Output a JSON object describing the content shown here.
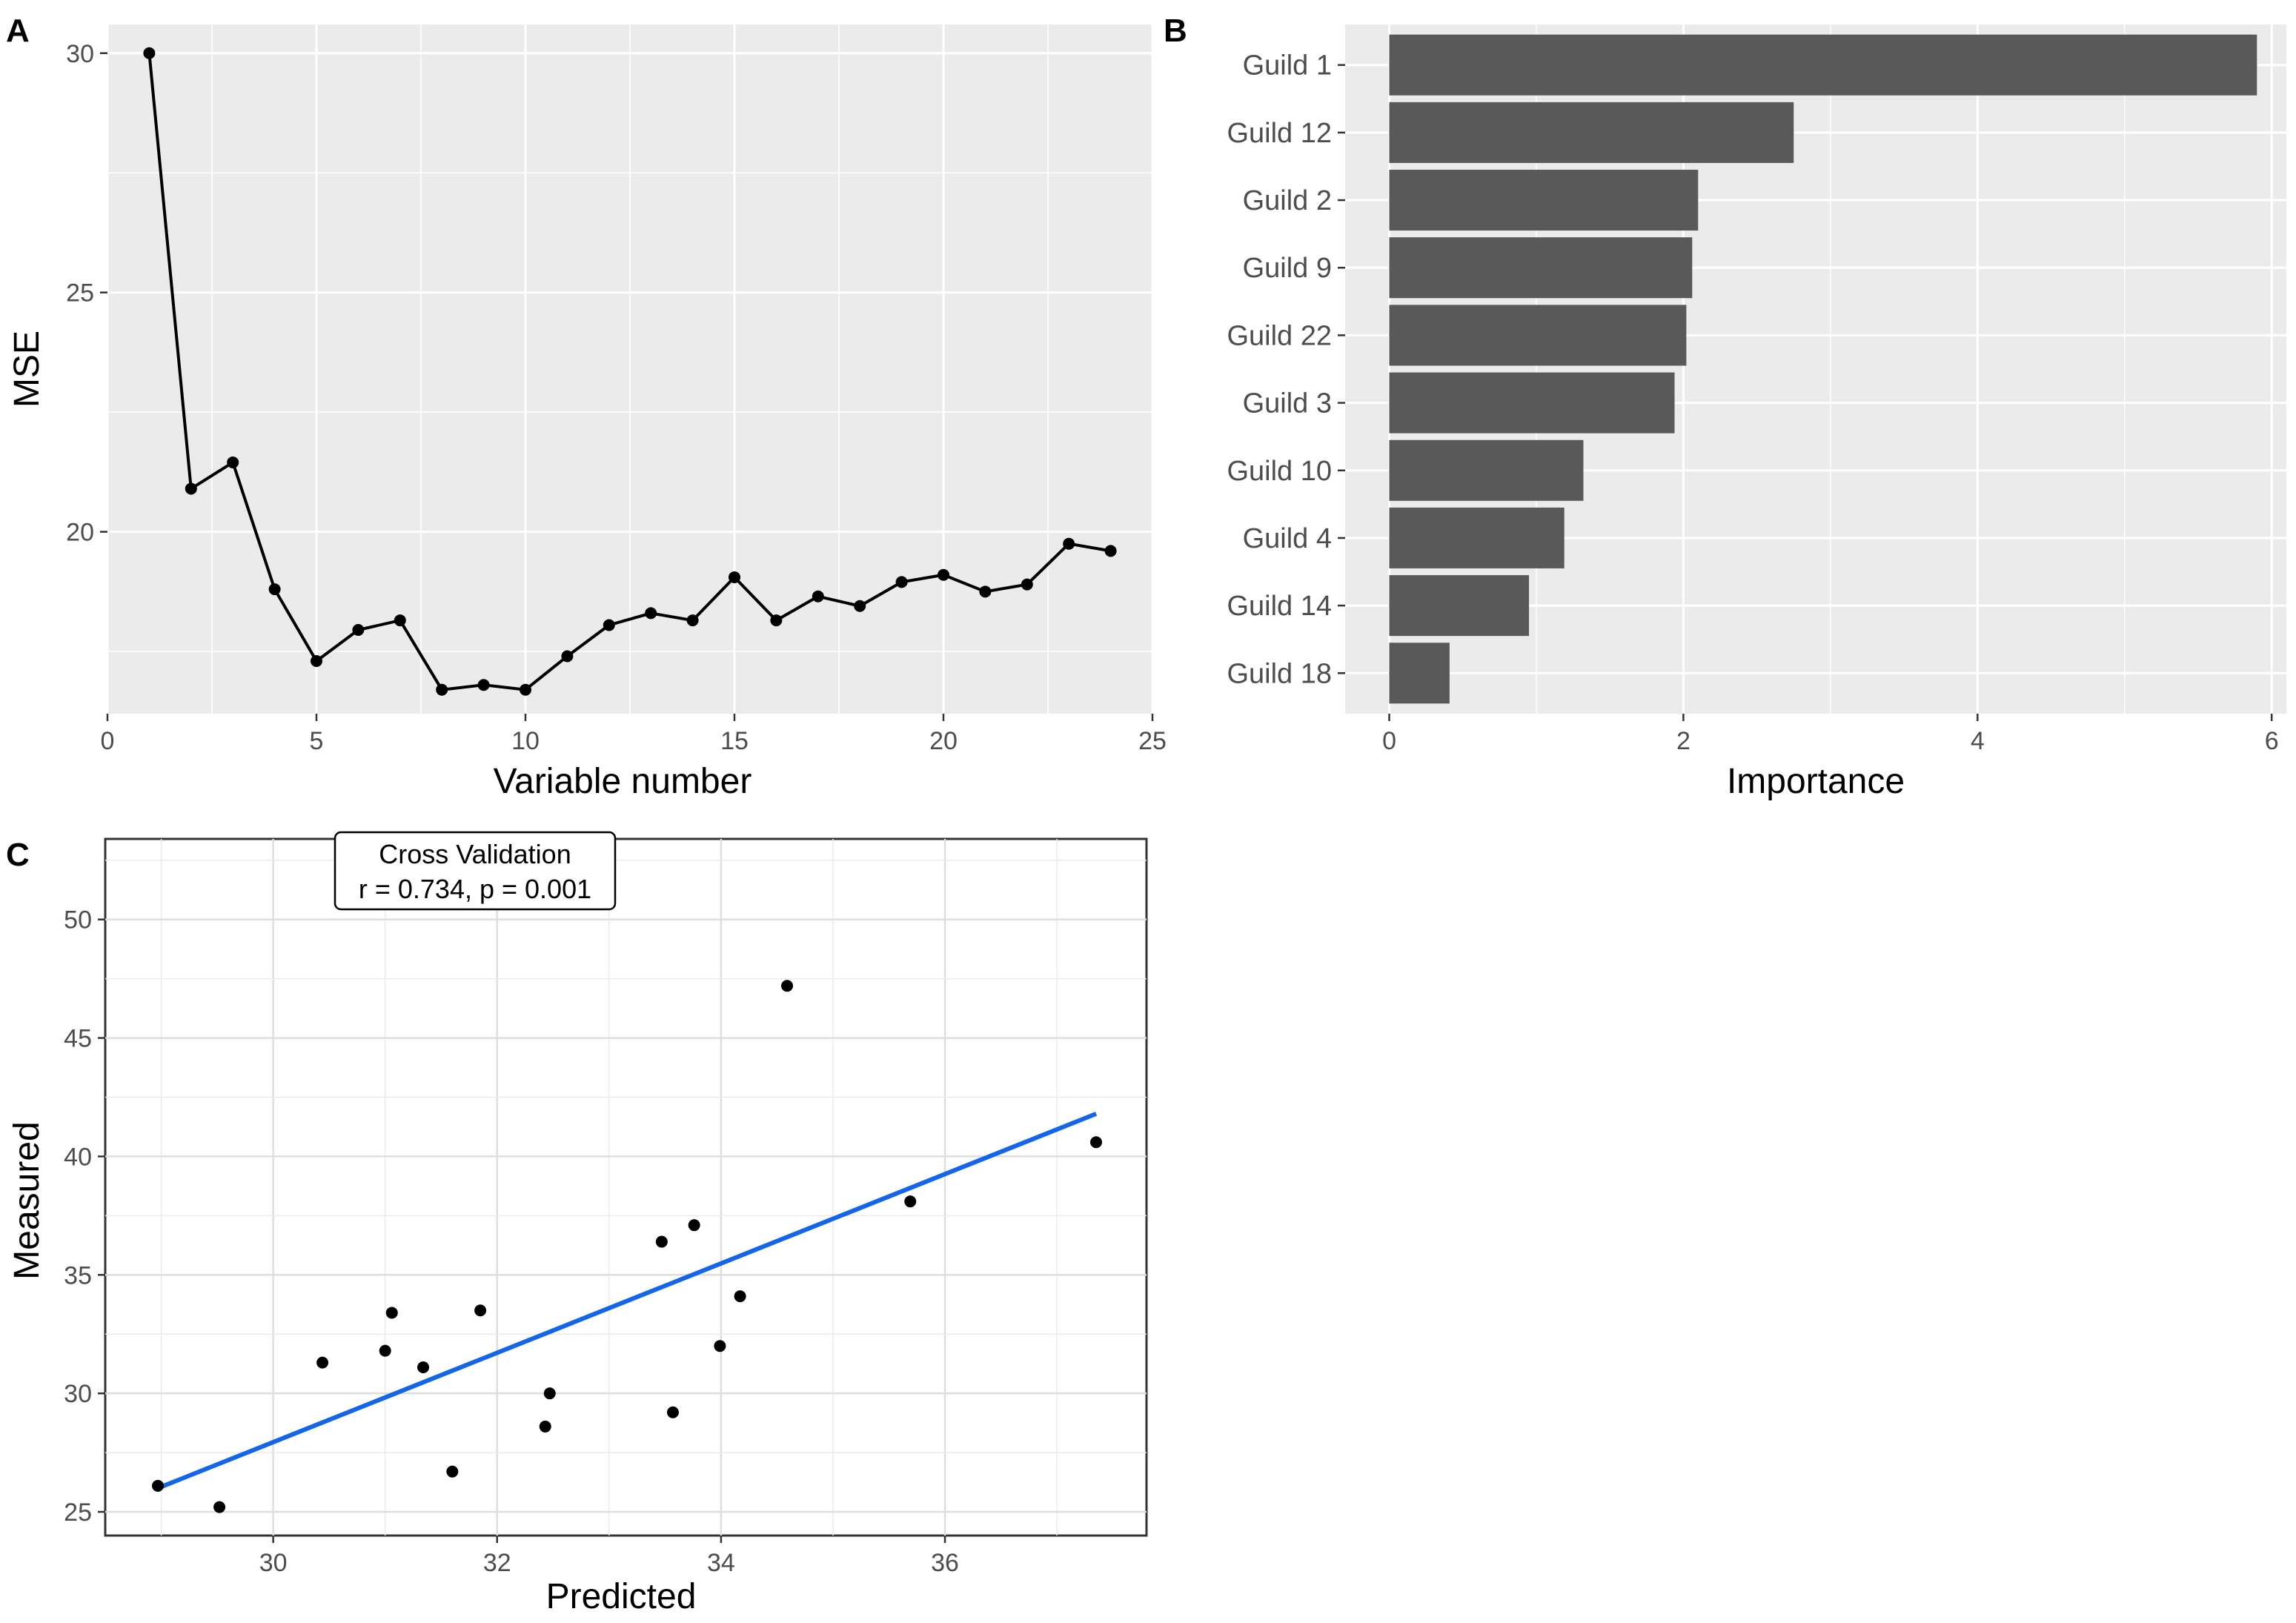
{
  "chart_data": [
    {
      "panel": "A",
      "type": "line",
      "xlabel": "Variable number",
      "ylabel": "MSE",
      "xlim": [
        0,
        25
      ],
      "ylim": [
        16.2,
        30.6
      ],
      "xticks": [
        0,
        5,
        10,
        15,
        20,
        25
      ],
      "yticks": [
        20,
        25,
        30
      ],
      "grid": true,
      "x": [
        1,
        2,
        3,
        4,
        5,
        6,
        7,
        8,
        9,
        10,
        11,
        12,
        13,
        14,
        15,
        16,
        17,
        18,
        19,
        20,
        21,
        22,
        23,
        24
      ],
      "y": [
        30.0,
        20.9,
        21.45,
        18.8,
        17.3,
        17.95,
        18.15,
        16.7,
        16.8,
        16.7,
        17.4,
        18.05,
        18.3,
        18.15,
        19.05,
        18.15,
        18.65,
        18.45,
        18.95,
        19.1,
        18.75,
        18.9,
        19.75,
        19.6
      ],
      "marker": "point",
      "color": "#000000"
    },
    {
      "panel": "B",
      "type": "bar",
      "orientation": "horizontal",
      "xlabel": "Importance",
      "ylabel": "",
      "xlim": [
        -0.3,
        6.1
      ],
      "xticks": [
        0,
        2,
        4,
        6
      ],
      "grid": true,
      "categories": [
        "Guild 1",
        "Guild 12",
        "Guild 2",
        "Guild 9",
        "Guild 22",
        "Guild 3",
        "Guild 10",
        "Guild 4",
        "Guild 14",
        "Guild 18"
      ],
      "values": [
        5.9,
        2.75,
        2.1,
        2.06,
        2.02,
        1.94,
        1.32,
        1.19,
        0.95,
        0.41
      ],
      "color": "#595959"
    },
    {
      "panel": "C",
      "type": "scatter",
      "xlabel": "Predicted",
      "ylabel": "Measured",
      "xlim": [
        28.5,
        37.8
      ],
      "ylim": [
        24.0,
        53.4
      ],
      "xticks": [
        30,
        32,
        34,
        36
      ],
      "yticks": [
        25,
        30,
        35,
        40,
        45,
        50
      ],
      "grid": true,
      "points": [
        {
          "x": 28.97,
          "y": 26.1
        },
        {
          "x": 29.52,
          "y": 25.2
        },
        {
          "x": 30.44,
          "y": 31.3
        },
        {
          "x": 31.0,
          "y": 31.8
        },
        {
          "x": 31.06,
          "y": 33.4
        },
        {
          "x": 31.34,
          "y": 31.1
        },
        {
          "x": 31.6,
          "y": 26.7
        },
        {
          "x": 31.85,
          "y": 33.5
        },
        {
          "x": 32.43,
          "y": 28.6
        },
        {
          "x": 32.47,
          "y": 30.0
        },
        {
          "x": 33.47,
          "y": 36.4
        },
        {
          "x": 33.57,
          "y": 29.2
        },
        {
          "x": 33.76,
          "y": 37.1
        },
        {
          "x": 33.99,
          "y": 32.0
        },
        {
          "x": 34.17,
          "y": 34.1
        },
        {
          "x": 34.59,
          "y": 47.2
        },
        {
          "x": 35.69,
          "y": 38.1
        },
        {
          "x": 37.35,
          "y": 40.6
        }
      ],
      "fit_line": {
        "x": [
          28.97,
          37.35
        ],
        "y": [
          26.0,
          41.8
        ],
        "color": "#1565e8"
      },
      "annotation": {
        "line1": "Cross Validation",
        "line2": "r = 0.734, p = 0.001"
      }
    }
  ]
}
